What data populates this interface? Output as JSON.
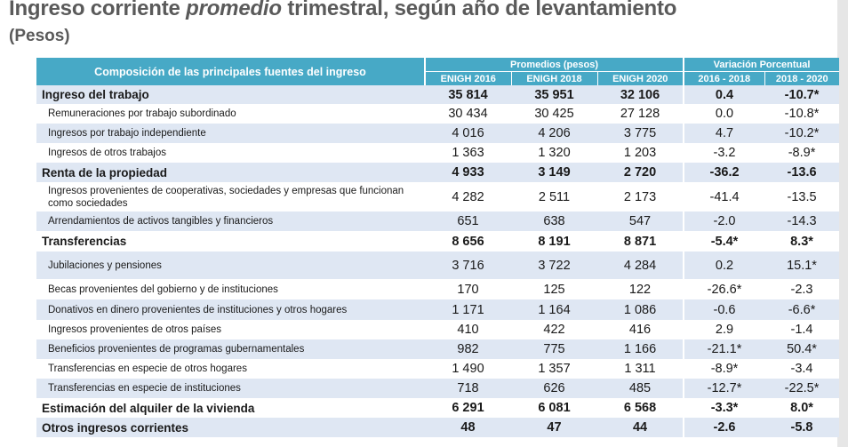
{
  "title": {
    "before": "Ingreso corriente ",
    "emphasis": "promedio",
    "after": " trimestral, según año de levantamiento"
  },
  "subtitle": "(Pesos)",
  "table": {
    "composition_header": "Composición de las principales fuentes del ingreso",
    "group_averages": "Promedios (pesos)",
    "group_variation": "Variación Porcentual",
    "columns": [
      "ENIGH 2016",
      "ENIGH 2018",
      "ENIGH 2020",
      "2016 - 2018",
      "2018 - 2020"
    ],
    "rows": [
      {
        "label": "Ingreso del trabajo",
        "main": true,
        "v2016": "35 814",
        "v2018": "35 951",
        "v2020": "32 106",
        "var1618": "0.4",
        "var1820": "-10.7*"
      },
      {
        "label": "Remuneraciones por trabajo subordinado",
        "main": false,
        "v2016": "30 434",
        "v2018": "30 425",
        "v2020": "27 128",
        "var1618": "0.0",
        "var1820": "-10.8*"
      },
      {
        "label": "Ingresos por trabajo independiente",
        "main": false,
        "v2016": "4 016",
        "v2018": "4 206",
        "v2020": "3 775",
        "var1618": "4.7",
        "var1820": "-10.2*"
      },
      {
        "label": "Ingresos de otros trabajos",
        "main": false,
        "v2016": "1 363",
        "v2018": "1 320",
        "v2020": "1 203",
        "var1618": "-3.2",
        "var1820": "-8.9*"
      },
      {
        "label": "Renta de la propiedad",
        "main": true,
        "v2016": "4 933",
        "v2018": "3 149",
        "v2020": "2 720",
        "var1618": "-36.2",
        "var1820": "-13.6"
      },
      {
        "label": "Ingresos provenientes de cooperativas, sociedades y empresas que funcionan como sociedades",
        "main": false,
        "v2016": "4 282",
        "v2018": "2 511",
        "v2020": "2 173",
        "var1618": "-41.4",
        "var1820": "-13.5"
      },
      {
        "label": "Arrendamientos de activos tangibles y financieros",
        "main": false,
        "v2016": "651",
        "v2018": "638",
        "v2020": "547",
        "var1618": "-2.0",
        "var1820": "-14.3"
      },
      {
        "label": "Transferencias",
        "main": true,
        "v2016": "8 656",
        "v2018": "8 191",
        "v2020": "8 871",
        "var1618": "-5.4*",
        "var1820": "8.3*"
      },
      {
        "label": "Jubilaciones y pensiones",
        "main": false,
        "v2016": "3 716",
        "v2018": "3 722",
        "v2020": "4 284",
        "var1618": "0.2",
        "var1820": "15.1*"
      },
      {
        "label": "Becas provenientes del gobierno y de instituciones",
        "main": false,
        "v2016": "170",
        "v2018": "125",
        "v2020": "122",
        "var1618": "-26.6*",
        "var1820": "-2.3"
      },
      {
        "label": "Donativos en dinero provenientes de instituciones y otros hogares",
        "main": false,
        "v2016": "1 171",
        "v2018": "1 164",
        "v2020": "1 086",
        "var1618": "-0.6",
        "var1820": "-6.6*"
      },
      {
        "label": "Ingresos provenientes de otros países",
        "main": false,
        "v2016": "410",
        "v2018": "422",
        "v2020": "416",
        "var1618": "2.9",
        "var1820": "-1.4"
      },
      {
        "label": "Beneficios provenientes de programas gubernamentales",
        "main": false,
        "v2016": "982",
        "v2018": "775",
        "v2020": "1 166",
        "var1618": "-21.1*",
        "var1820": "50.4*"
      },
      {
        "label": "Transferencias en especie de otros hogares",
        "main": false,
        "v2016": "1 490",
        "v2018": "1 357",
        "v2020": "1 311",
        "var1618": "-8.9*",
        "var1820": "-3.4"
      },
      {
        "label": "Transferencias en especie de instituciones",
        "main": false,
        "v2016": "718",
        "v2018": "626",
        "v2020": "485",
        "var1618": "-12.7*",
        "var1820": "-22.5*"
      },
      {
        "label": "Estimación del alquiler de la vivienda",
        "main": true,
        "v2016": "6 291",
        "v2018": "6 081",
        "v2020": "6 568",
        "var1618": "-3.3*",
        "var1820": "8.0*"
      },
      {
        "label": "Otros ingresos corrientes",
        "main": true,
        "v2016": "48",
        "v2018": "47",
        "v2020": "44",
        "var1618": "-2.6",
        "var1820": "-5.8"
      }
    ]
  }
}
